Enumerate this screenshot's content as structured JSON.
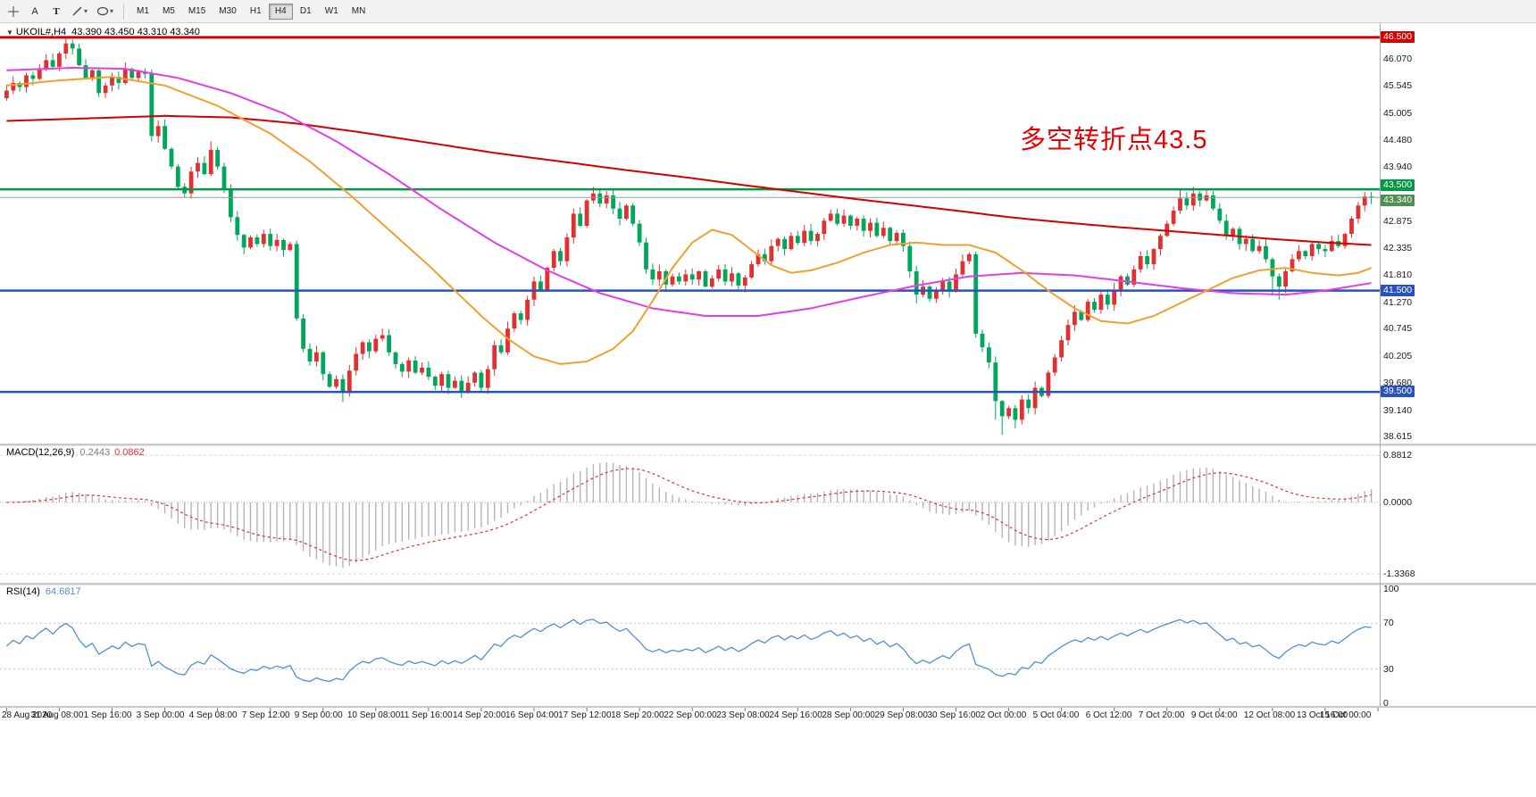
{
  "toolbar": {
    "a_button": "A",
    "t_button": "T",
    "timeframes": [
      "M1",
      "M5",
      "M15",
      "M30",
      "H1",
      "H4",
      "D1",
      "W1",
      "MN"
    ],
    "active_timeframe": "H4"
  },
  "header": {
    "collapse_icon": "▼",
    "symbol": "UKOIL#,H4",
    "ohlc": "43.390 43.450 43.310 43.340"
  },
  "annotation": {
    "text": "多空转折点43.5",
    "color": "#e60000"
  },
  "panels": {
    "macd": {
      "title": "MACD(12,26,9)",
      "main_value": "0.2443",
      "signal_value": "0.0862"
    },
    "rsi": {
      "title": "RSI(14)",
      "value": "64.6817"
    }
  },
  "chart_data": {
    "type": "candlestick",
    "symbol": "UKOIL",
    "timeframe": "H4",
    "ylim": [
      38.55,
      46.78
    ],
    "up_color": "#e03030",
    "down_color": "#00a65a",
    "price_axis_labels": [
      "46.070",
      "45.545",
      "45.005",
      "44.480",
      "43.940",
      "42.875",
      "42.335",
      "41.810",
      "41.270",
      "40.745",
      "40.205",
      "39.680",
      "39.140",
      "38.615"
    ],
    "price_tags": [
      {
        "text": "46.500",
        "value": 46.5,
        "color": "#d40000",
        "dy": -7
      },
      {
        "text": "43.500",
        "value": 43.5,
        "color": "#009944",
        "dy": -11
      },
      {
        "text": "43.340",
        "value": 43.34,
        "color": "#4f8f4f",
        "dy": -3
      },
      {
        "text": "41.500",
        "value": 41.5,
        "color": "#2a52be",
        "dy": -7
      },
      {
        "text": "39.500",
        "value": 39.5,
        "color": "#2a52be",
        "dy": -7
      }
    ],
    "hlines": [
      {
        "value": 46.5,
        "color": "#d40000",
        "width": 3,
        "dash": false
      },
      {
        "value": 43.5,
        "color": "#009944",
        "width": 2.5,
        "dash": false
      },
      {
        "value": 43.34,
        "color": "#999999",
        "width": 1,
        "dash": false
      },
      {
        "value": 41.5,
        "color": "#2a52be",
        "width": 2.5,
        "dash": false
      },
      {
        "value": 39.5,
        "color": "#2a52be",
        "width": 2.5,
        "dash": false
      }
    ],
    "time_labels": [
      "28 Aug 2020",
      "31 Aug 08:00",
      "1 Sep 16:00",
      "3 Sep 00:00",
      "4 Sep 08:00",
      "7 Sep 12:00",
      "9 Sep 00:00",
      "10 Sep 08:00",
      "11 Sep 16:00",
      "14 Sep 20:00",
      "16 Sep 04:00",
      "17 Sep 12:00",
      "18 Sep 20:00",
      "22 Sep 00:00",
      "23 Sep 08:00",
      "24 Sep 16:00",
      "28 Sep 00:00",
      "29 Sep 08:00",
      "30 Sep 16:00",
      "2 Oct 00:00",
      "5 Oct 04:00",
      "6 Oct 12:00",
      "7 Oct 20:00",
      "9 Oct 04:00",
      "12 Oct 08:00",
      "13 Oct 16:00",
      "15 Oct 00:00"
    ],
    "bars_per_label": 8,
    "open_first": 45.3,
    "closes": [
      45.45,
      45.6,
      45.52,
      45.75,
      45.68,
      45.88,
      46.05,
      45.92,
      46.18,
      46.38,
      46.28,
      45.95,
      45.7,
      45.85,
      45.4,
      45.55,
      45.72,
      45.6,
      45.88,
      45.7,
      45.82,
      45.78,
      44.55,
      44.75,
      44.3,
      43.95,
      43.55,
      43.42,
      43.85,
      44.02,
      43.8,
      44.28,
      43.95,
      43.5,
      42.95,
      42.6,
      42.35,
      42.55,
      42.42,
      42.62,
      42.38,
      42.5,
      42.3,
      42.42,
      40.95,
      40.35,
      40.1,
      40.28,
      39.85,
      39.6,
      39.75,
      39.48,
      39.92,
      40.25,
      40.48,
      40.3,
      40.55,
      40.62,
      40.28,
      40.05,
      39.9,
      40.12,
      39.88,
      39.98,
      39.8,
      39.62,
      39.85,
      39.58,
      39.72,
      39.52,
      39.68,
      39.88,
      39.58,
      39.95,
      40.42,
      40.28,
      40.75,
      41.05,
      40.92,
      41.32,
      41.68,
      41.52,
      41.95,
      42.28,
      42.08,
      42.55,
      43.02,
      42.78,
      43.28,
      43.42,
      43.22,
      43.38,
      43.12,
      42.92,
      43.18,
      42.82,
      42.45,
      41.92,
      41.72,
      41.88,
      41.62,
      41.78,
      41.68,
      41.82,
      41.72,
      41.88,
      41.58,
      41.74,
      41.92,
      41.68,
      41.84,
      41.6,
      41.76,
      42.02,
      42.22,
      42.08,
      42.38,
      42.52,
      42.32,
      42.58,
      42.44,
      42.68,
      42.48,
      42.62,
      42.88,
      43.02,
      42.82,
      42.98,
      42.78,
      42.92,
      42.68,
      42.84,
      42.58,
      42.74,
      42.48,
      42.64,
      42.38,
      41.88,
      41.42,
      41.58,
      41.34,
      41.52,
      41.68,
      41.48,
      41.82,
      42.08,
      42.22,
      40.65,
      40.38,
      40.08,
      39.32,
      39.02,
      39.18,
      38.95,
      39.35,
      39.18,
      39.58,
      39.42,
      39.88,
      40.18,
      40.52,
      40.82,
      41.08,
      40.92,
      41.28,
      41.12,
      41.42,
      41.22,
      41.52,
      41.78,
      41.62,
      41.92,
      42.18,
      42.02,
      42.32,
      42.58,
      42.82,
      43.08,
      43.32,
      43.18,
      43.42,
      43.28,
      43.38,
      43.12,
      42.88,
      42.58,
      42.72,
      42.42,
      42.52,
      42.28,
      42.38,
      42.12,
      41.78,
      41.58,
      41.88,
      42.12,
      42.28,
      42.18,
      42.42,
      42.32,
      42.28,
      42.48,
      42.38,
      42.62,
      42.92,
      43.18,
      43.36,
      43.34
    ],
    "wick_overrides": {
      "9": [
        46.5,
        null
      ],
      "31": [
        44.45,
        null
      ],
      "51": [
        null,
        39.3
      ],
      "57": [
        40.75,
        null
      ],
      "69": [
        null,
        39.38
      ],
      "89": [
        43.55,
        null
      ],
      "100": [
        null,
        41.52
      ],
      "138": [
        null,
        41.25
      ],
      "150": [
        null,
        38.95
      ],
      "151": [
        null,
        38.65
      ],
      "153": [
        null,
        38.78
      ],
      "178": [
        43.48,
        null
      ],
      "180": [
        43.55,
        null
      ],
      "182": [
        43.5,
        null
      ],
      "192": [
        null,
        41.4
      ],
      "193": [
        null,
        41.32
      ],
      "206": [
        43.45,
        null
      ],
      "207": [
        43.45,
        null
      ]
    },
    "ma_lines": [
      {
        "name": "ma-slow-red",
        "color": "#d40000",
        "width": 2,
        "points": [
          [
            0,
            44.85
          ],
          [
            12,
            44.9
          ],
          [
            24,
            44.95
          ],
          [
            34,
            44.92
          ],
          [
            44,
            44.8
          ],
          [
            54,
            44.62
          ],
          [
            64,
            44.42
          ],
          [
            74,
            44.22
          ],
          [
            84,
            44.05
          ],
          [
            94,
            43.88
          ],
          [
            104,
            43.72
          ],
          [
            112,
            43.58
          ],
          [
            120,
            43.45
          ],
          [
            128,
            43.32
          ],
          [
            136,
            43.2
          ],
          [
            144,
            43.08
          ],
          [
            152,
            42.95
          ],
          [
            160,
            42.85
          ],
          [
            168,
            42.76
          ],
          [
            176,
            42.68
          ],
          [
            184,
            42.6
          ],
          [
            192,
            42.52
          ],
          [
            200,
            42.45
          ],
          [
            207,
            42.4
          ]
        ]
      },
      {
        "name": "ma-mid-magenta",
        "color": "#e53ce5",
        "width": 2,
        "points": [
          [
            0,
            45.85
          ],
          [
            10,
            45.9
          ],
          [
            18,
            45.88
          ],
          [
            26,
            45.7
          ],
          [
            34,
            45.4
          ],
          [
            42,
            45.0
          ],
          [
            50,
            44.45
          ],
          [
            58,
            43.8
          ],
          [
            66,
            43.1
          ],
          [
            74,
            42.45
          ],
          [
            82,
            41.9
          ],
          [
            90,
            41.45
          ],
          [
            98,
            41.15
          ],
          [
            106,
            41.0
          ],
          [
            114,
            41.0
          ],
          [
            122,
            41.15
          ],
          [
            130,
            41.38
          ],
          [
            138,
            41.6
          ],
          [
            146,
            41.78
          ],
          [
            154,
            41.85
          ],
          [
            162,
            41.8
          ],
          [
            170,
            41.68
          ],
          [
            178,
            41.55
          ],
          [
            186,
            41.45
          ],
          [
            194,
            41.42
          ],
          [
            200,
            41.5
          ],
          [
            207,
            41.65
          ]
        ]
      },
      {
        "name": "ma-fast-orange",
        "color": "#f0a030",
        "width": 2,
        "points": [
          [
            0,
            45.55
          ],
          [
            8,
            45.65
          ],
          [
            16,
            45.72
          ],
          [
            24,
            45.55
          ],
          [
            32,
            45.15
          ],
          [
            40,
            44.6
          ],
          [
            46,
            44.05
          ],
          [
            52,
            43.4
          ],
          [
            58,
            42.7
          ],
          [
            64,
            42.0
          ],
          [
            68,
            41.5
          ],
          [
            72,
            41.0
          ],
          [
            76,
            40.55
          ],
          [
            80,
            40.2
          ],
          [
            84,
            40.05
          ],
          [
            88,
            40.1
          ],
          [
            92,
            40.35
          ],
          [
            95,
            40.7
          ],
          [
            98,
            41.3
          ],
          [
            101,
            41.95
          ],
          [
            104,
            42.45
          ],
          [
            107,
            42.7
          ],
          [
            110,
            42.6
          ],
          [
            113,
            42.3
          ],
          [
            116,
            42.0
          ],
          [
            119,
            41.85
          ],
          [
            122,
            41.9
          ],
          [
            126,
            42.05
          ],
          [
            130,
            42.25
          ],
          [
            134,
            42.4
          ],
          [
            138,
            42.45
          ],
          [
            142,
            42.4
          ],
          [
            146,
            42.4
          ],
          [
            150,
            42.25
          ],
          [
            154,
            41.9
          ],
          [
            158,
            41.5
          ],
          [
            162,
            41.15
          ],
          [
            166,
            40.9
          ],
          [
            170,
            40.85
          ],
          [
            174,
            41.0
          ],
          [
            178,
            41.25
          ],
          [
            182,
            41.5
          ],
          [
            186,
            41.75
          ],
          [
            190,
            41.9
          ],
          [
            194,
            41.95
          ],
          [
            198,
            41.85
          ],
          [
            202,
            41.8
          ],
          [
            205,
            41.85
          ],
          [
            207,
            41.95
          ]
        ]
      }
    ],
    "macd": {
      "params": [
        12,
        26,
        9
      ],
      "shown_values": [
        0.2443,
        0.0862
      ],
      "axis": [
        {
          "text": "0.8812",
          "value": 0.8812
        },
        {
          "text": "0.0000",
          "value": 0
        },
        {
          "text": "-1.3368",
          "value": -1.3368
        }
      ],
      "range": [
        -1.42,
        0.95
      ],
      "hist_color": "#b4b4b4",
      "signal_color": "#e03131"
    },
    "rsi": {
      "period": 14,
      "shown_value": 64.6817,
      "axis": [
        {
          "text": "100",
          "value": 100
        },
        {
          "text": "70",
          "value": 70
        },
        {
          "text": "30",
          "value": 30
        },
        {
          "text": "0",
          "value": 0
        }
      ],
      "levels": [
        70,
        30
      ],
      "color": "#4f8fd9",
      "range": [
        0,
        100
      ]
    }
  }
}
